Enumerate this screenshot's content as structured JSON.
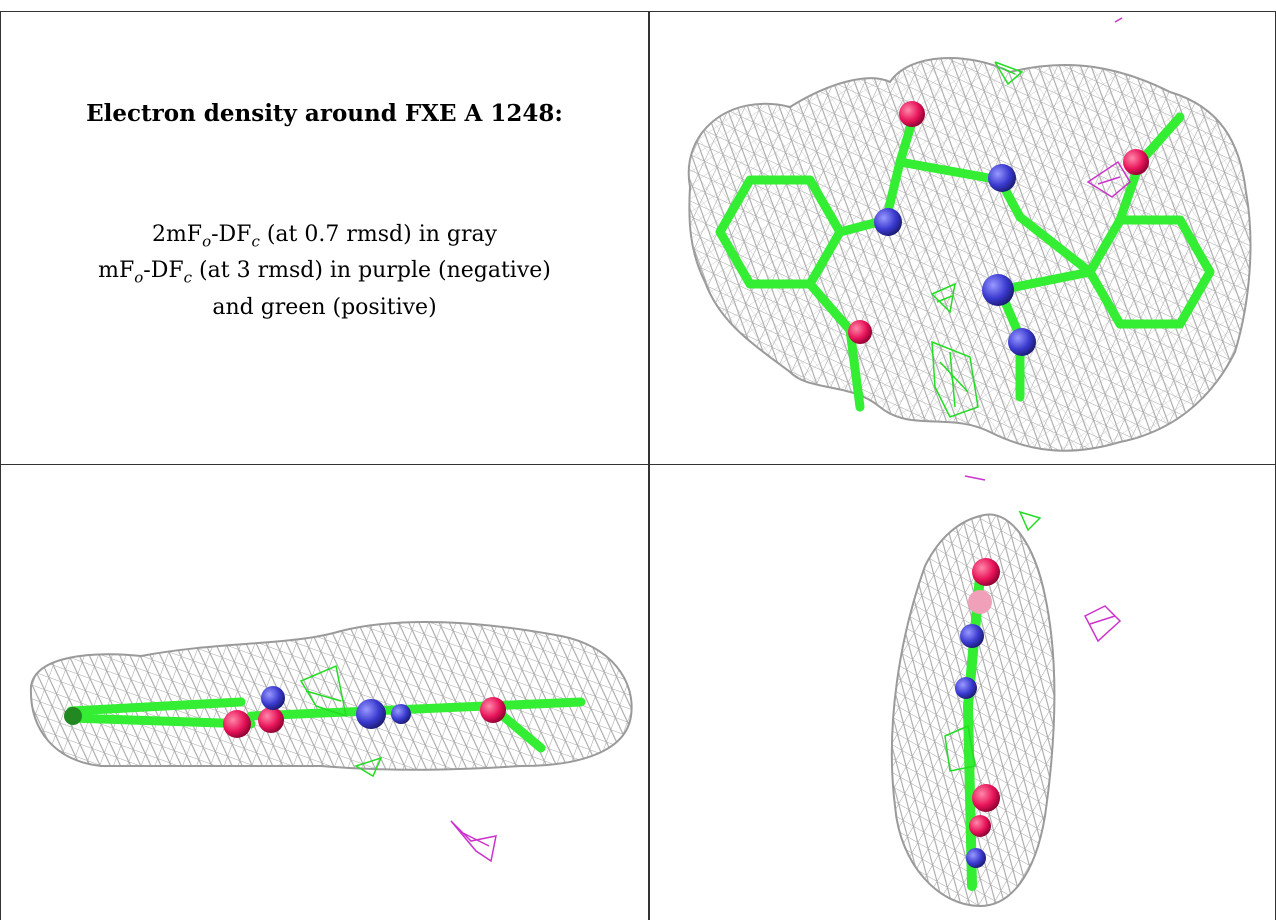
{
  "title": "Electron density around FXE A 1248:",
  "legend": {
    "line1": {
      "prefix": "2mF",
      "sub1": "o",
      "mid": "-DF",
      "sub2": "c",
      "suffix": " (at 0.7 rmsd) in gray"
    },
    "line2": {
      "prefix": "mF",
      "sub1": "o",
      "mid": "-DF",
      "sub2": "c",
      "suffix": " (at 3 rmsd) in purple (negative)"
    },
    "line3": "and green (positive)"
  },
  "views": [
    {
      "name": "top-view",
      "mesh_color": "#a8a8a8",
      "carbon_color": "#33ee33",
      "nitrogen_color": "#4444cc",
      "oxygen_color": "#ee2266",
      "positive_color": "#22dd22",
      "negative_color": "#cc33cc"
    },
    {
      "name": "side-view"
    },
    {
      "name": "end-view"
    }
  ]
}
